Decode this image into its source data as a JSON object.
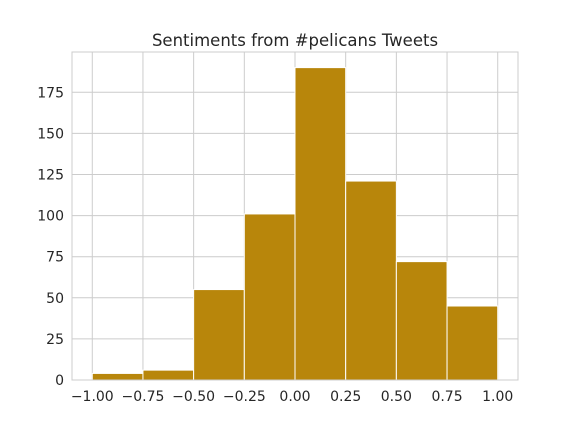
{
  "chart_data": {
    "type": "bar",
    "title": "Sentiments from #pelicans Tweets",
    "xlabel": "",
    "ylabel": "",
    "bins": [
      {
        "start": -1.0,
        "end": -0.75,
        "count": 4
      },
      {
        "start": -0.75,
        "end": -0.5,
        "count": 6
      },
      {
        "start": -0.5,
        "end": -0.25,
        "count": 55
      },
      {
        "start": -0.25,
        "end": 0.0,
        "count": 101
      },
      {
        "start": 0.0,
        "end": 0.25,
        "count": 190
      },
      {
        "start": 0.25,
        "end": 0.5,
        "count": 121
      },
      {
        "start": 0.5,
        "end": 0.75,
        "count": 72
      },
      {
        "start": 0.75,
        "end": 1.0,
        "count": 45
      }
    ],
    "xlim": [
      -1.1,
      1.1
    ],
    "ylim": [
      0,
      199.5
    ],
    "xticks": [
      -1.0,
      -0.75,
      -0.5,
      -0.25,
      0.0,
      0.25,
      0.5,
      0.75,
      1.0
    ],
    "xtick_labels": [
      "−1.00",
      "−0.75",
      "−0.50",
      "−0.25",
      "0.00",
      "0.25",
      "0.50",
      "0.75",
      "1.00"
    ],
    "yticks": [
      0,
      25,
      50,
      75,
      100,
      125,
      150,
      175
    ],
    "ytick_labels": [
      "0",
      "25",
      "50",
      "75",
      "100",
      "125",
      "150",
      "175"
    ],
    "grid": true,
    "colors": {
      "bar": "#b8860b",
      "grid": "#cccccc",
      "axes": "#cccccc",
      "text": "#262626"
    }
  }
}
